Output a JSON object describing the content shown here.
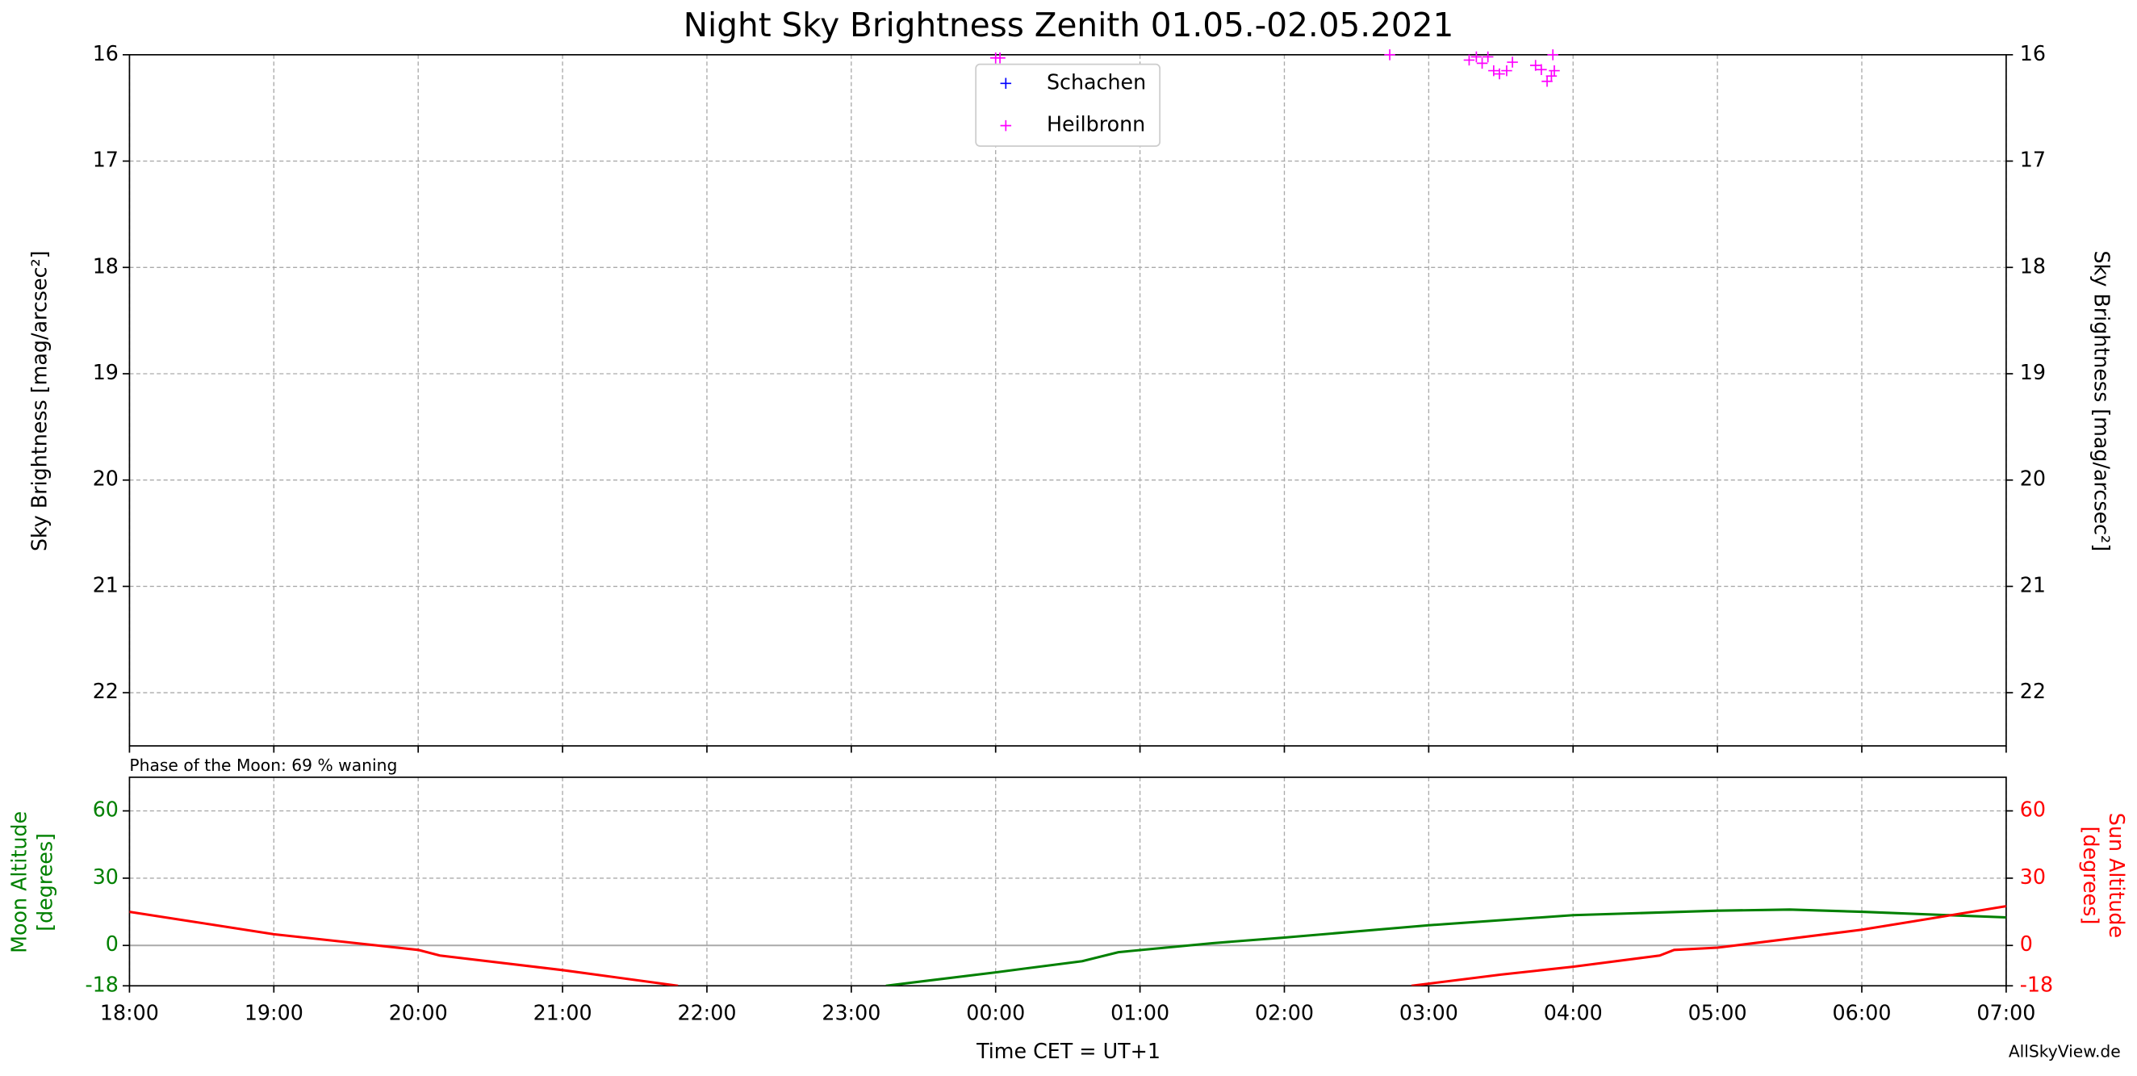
{
  "chart_data": [
    {
      "type": "scatter",
      "title": "Night Sky Brightness Zenith 01.05.-02.05.2021",
      "ylabel": "Sky Brightness [mag/arcsec²]",
      "y2label": "Sky Brightness [mag/arcsec²]",
      "ylim": [
        22.5,
        16
      ],
      "yticks": [
        16,
        17,
        18,
        19,
        20,
        21,
        22
      ],
      "xlim": [
        18,
        31
      ],
      "grid": true,
      "legend": "upper center",
      "series": [
        {
          "name": "Schachen",
          "color": "#0000ff",
          "x": [],
          "values": []
        },
        {
          "name": "Heilbronn",
          "color": "#ff00ff",
          "x": [
            24.0,
            24.03,
            26.73,
            27.28,
            27.33,
            27.37,
            27.41,
            27.45,
            27.49,
            27.54,
            27.58,
            27.74,
            27.78,
            27.82,
            27.85,
            27.87,
            27.86
          ],
          "values": [
            16.03,
            16.03,
            16.0,
            16.05,
            16.02,
            16.08,
            16.02,
            16.15,
            16.18,
            16.15,
            16.07,
            16.1,
            16.14,
            16.25,
            16.2,
            16.15,
            16.0
          ]
        }
      ]
    },
    {
      "type": "line",
      "annotation": "Phase of the Moon: 69 % waning",
      "credit": "AllSkyView.de",
      "xlabel": "Time CET = UT+1",
      "ylabel": [
        "Moon Altitude",
        "[degrees]"
      ],
      "y2label": [
        "Sun Altitude",
        "[degrees]"
      ],
      "xlim": [
        18,
        31
      ],
      "xticks": [
        {
          "value": 18,
          "label": "18:00"
        },
        {
          "value": 19,
          "label": "19:00"
        },
        {
          "value": 20,
          "label": "20:00"
        },
        {
          "value": 21,
          "label": "21:00"
        },
        {
          "value": 22,
          "label": "22:00"
        },
        {
          "value": 23,
          "label": "23:00"
        },
        {
          "value": 24,
          "label": "00:00"
        },
        {
          "value": 25,
          "label": "01:00"
        },
        {
          "value": 26,
          "label": "02:00"
        },
        {
          "value": 27,
          "label": "03:00"
        },
        {
          "value": 28,
          "label": "04:00"
        },
        {
          "value": 29,
          "label": "05:00"
        },
        {
          "value": 30,
          "label": "06:00"
        },
        {
          "value": 31,
          "label": "07:00"
        }
      ],
      "ylim": [
        -18,
        75
      ],
      "yticks": [
        -18,
        0,
        30,
        60
      ],
      "y2lim": [
        -18,
        75
      ],
      "y2ticks": [
        -18,
        0,
        30,
        60
      ],
      "grid": true,
      "zero_line": true,
      "series": [
        {
          "name": "Moon",
          "color": "#008000",
          "x": [
            23.24,
            24,
            24.6,
            24.85,
            25.5,
            26,
            27,
            28,
            29,
            29.5,
            30,
            31
          ],
          "values": [
            -18,
            -12,
            -7,
            -3,
            1,
            3.5,
            9,
            13.5,
            15.5,
            16,
            15,
            12.5
          ]
        },
        {
          "name": "Sun",
          "color": "#ff0000",
          "axis": "y2",
          "x": [
            18,
            19,
            20,
            20.15,
            21,
            21.8,
            24,
            26.88,
            27.5,
            28,
            28.6,
            28.7,
            29,
            30,
            31
          ],
          "values": [
            15,
            5,
            -2,
            -4.5,
            -11,
            -18,
            null,
            -18,
            -13,
            -9.5,
            -4.5,
            -2,
            -1,
            7,
            17.5
          ]
        }
      ]
    }
  ]
}
